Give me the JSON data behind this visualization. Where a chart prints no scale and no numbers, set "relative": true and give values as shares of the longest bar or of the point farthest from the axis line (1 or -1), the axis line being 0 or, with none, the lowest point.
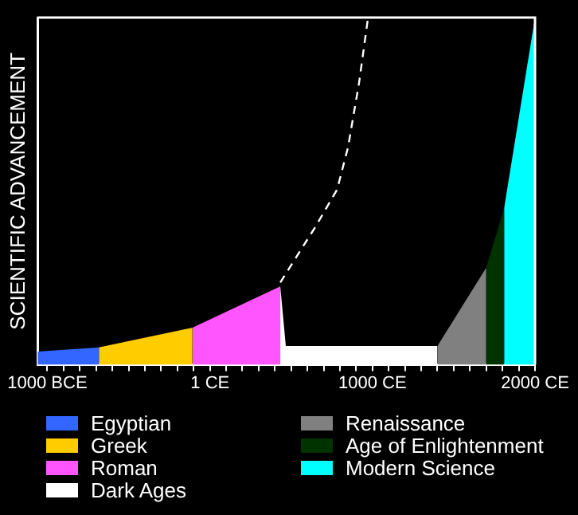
{
  "chart_data": {
    "type": "area",
    "ylabel": "SCIENTIFIC ADVANCEMENT",
    "relative": true,
    "grid": false,
    "legend": "bottom",
    "xlim": [
      -1060,
      2000
    ],
    "xticks": [
      {
        "value": -1000,
        "label": "1000 BCE"
      },
      {
        "value": -900,
        "label": null
      },
      {
        "value": -800,
        "label": null
      },
      {
        "value": -700,
        "label": null
      },
      {
        "value": -600,
        "label": null
      },
      {
        "value": -500,
        "label": null
      },
      {
        "value": -400,
        "label": null
      },
      {
        "value": -300,
        "label": null
      },
      {
        "value": -200,
        "label": null
      },
      {
        "value": -100,
        "label": null
      },
      {
        "value": 1,
        "label": "1 CE"
      },
      {
        "value": 100,
        "label": null
      },
      {
        "value": 200,
        "label": null
      },
      {
        "value": 300,
        "label": null
      },
      {
        "value": 400,
        "label": null
      },
      {
        "value": 500,
        "label": null
      },
      {
        "value": 600,
        "label": null
      },
      {
        "value": 700,
        "label": null
      },
      {
        "value": 800,
        "label": null
      },
      {
        "value": 900,
        "label": null
      },
      {
        "value": 1000,
        "label": "1000 CE"
      },
      {
        "value": 1100,
        "label": null
      },
      {
        "value": 1200,
        "label": null
      },
      {
        "value": 1300,
        "label": null
      },
      {
        "value": 1400,
        "label": null
      },
      {
        "value": 1500,
        "label": null
      },
      {
        "value": 1600,
        "label": null
      },
      {
        "value": 1700,
        "label": null
      },
      {
        "value": 1800,
        "label": null
      },
      {
        "value": 1900,
        "label": null
      },
      {
        "value": 2000,
        "label": "2000 CE"
      }
    ],
    "series": [
      {
        "name": "Egyptian",
        "color": "#3366ff",
        "x": [
          -1060,
          -683
        ],
        "values": [
          0.038,
          0.05
        ]
      },
      {
        "name": "Greek",
        "color": "#ffcc00",
        "x": [
          -683,
          -107
        ],
        "values": [
          0.05,
          0.107
        ]
      },
      {
        "name": "Roman",
        "color": "#ff55ff",
        "x": [
          -107,
          433
        ],
        "values": [
          0.107,
          0.226
        ]
      },
      {
        "name": "Dark Ages",
        "color": "#ffffff",
        "x": [
          433,
          467,
          1400
        ],
        "values": [
          0.226,
          0.054,
          0.054
        ]
      },
      {
        "name": "Renaissance",
        "color": "#808080",
        "x": [
          1400,
          1700
        ],
        "values": [
          0.054,
          0.28
        ]
      },
      {
        "name": "Age of Enlightenment",
        "color": "#003300",
        "x": [
          1700,
          1810
        ],
        "values": [
          0.28,
          0.451
        ]
      },
      {
        "name": "Modern Science",
        "color": "#00ffff",
        "x": [
          1810,
          2000
        ],
        "values": [
          0.451,
          1
        ]
      },
      {
        "type": "line",
        "color": "#ffffff",
        "line_style": "dashed",
        "marker": "none",
        "x": [
          433,
          650,
          783,
          850,
          917,
          973
        ],
        "values": [
          0.237,
          0.398,
          0.505,
          0.627,
          0.81,
          1
        ]
      }
    ]
  }
}
